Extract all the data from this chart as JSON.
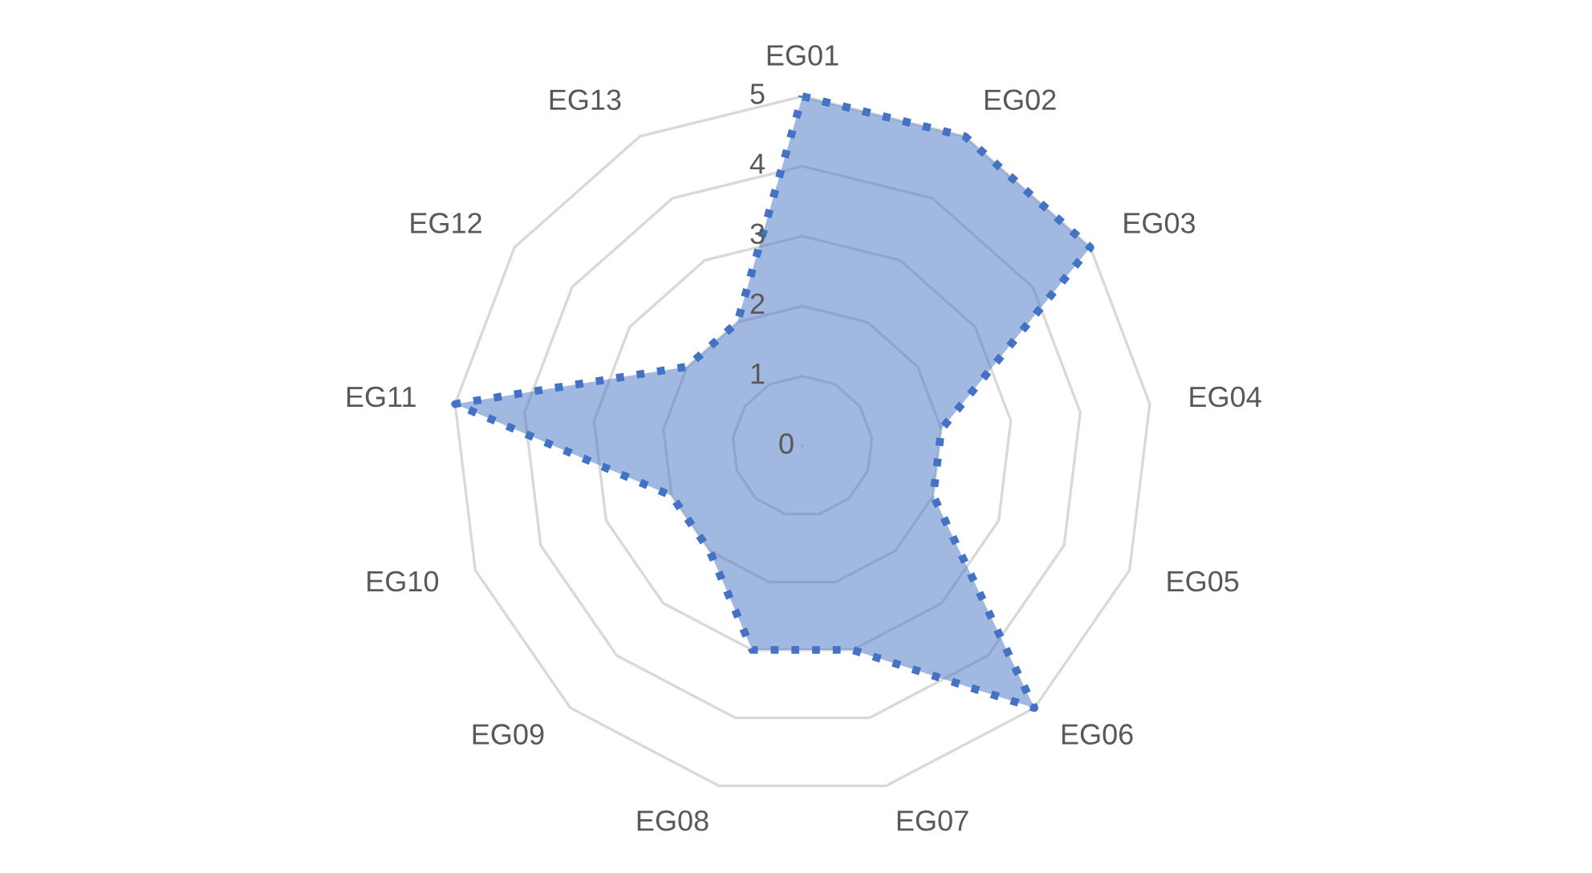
{
  "chart_data": {
    "type": "radar",
    "categories": [
      "EG01",
      "EG02",
      "EG03",
      "EG04",
      "EG05",
      "EG06",
      "EG07",
      "EG08",
      "EG09",
      "EG10",
      "EG11",
      "EG12",
      "EG13"
    ],
    "series": [
      {
        "color": "#4472c4",
        "values": [
          5,
          5,
          5,
          2,
          2,
          5,
          3,
          3,
          2,
          2,
          5,
          2,
          2
        ]
      }
    ],
    "ylim": [
      0,
      5
    ],
    "yticks": [
      0,
      1,
      2,
      3,
      4,
      5
    ],
    "grid": true,
    "line_style": "dotted"
  }
}
